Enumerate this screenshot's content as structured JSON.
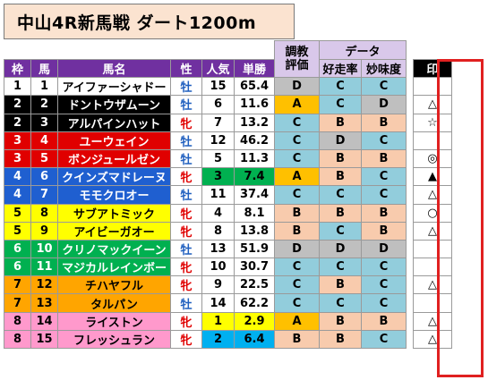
{
  "title": "中山4R新馬戦  ダート1200m",
  "headers": {
    "waku": "枠",
    "uma": "馬",
    "name": "馬名",
    "sex": "性",
    "ninki": "人気",
    "odds": "単勝",
    "chokyo_line1": "調教",
    "chokyo_line2": "評価",
    "data_group": "データ",
    "kosoritsu": "好走率",
    "mimido": "妙味度",
    "mark": "印"
  },
  "colors": {
    "waku": {
      "1": {
        "bg": "#ffffff",
        "fg": "#000000"
      },
      "2": {
        "bg": "#000000",
        "fg": "#ffffff"
      },
      "3": {
        "bg": "#e00000",
        "fg": "#ffffff"
      },
      "4": {
        "bg": "#1f5fd0",
        "fg": "#ffffff"
      },
      "5": {
        "bg": "#ffff00",
        "fg": "#000000"
      },
      "6": {
        "bg": "#00b050",
        "fg": "#ffffff"
      },
      "7": {
        "bg": "#ffa500",
        "fg": "#000000"
      },
      "8": {
        "bg": "#ff99cc",
        "fg": "#000000"
      }
    },
    "grade": {
      "A": "#ffc000",
      "B": "#f8cbad",
      "C": "#92cddc",
      "D": "#bfbfbf"
    },
    "ninki": {
      "1": "#ffff00",
      "2": "#00b0f0",
      "3": "#00b050"
    }
  },
  "rows": [
    {
      "waku": "1",
      "uma": "1",
      "name": "アイファーシャドー",
      "sex": "牡",
      "ninki": "15",
      "odds": "65.4",
      "chokyo": "D",
      "kosoritsu": "C",
      "mimido": "C",
      "mark": ""
    },
    {
      "waku": "2",
      "uma": "2",
      "name": "ドントウザムーン",
      "sex": "牡",
      "ninki": "6",
      "odds": "11.6",
      "chokyo": "A",
      "kosoritsu": "C",
      "mimido": "D",
      "mark": "△"
    },
    {
      "waku": "2",
      "uma": "3",
      "name": "アルパインハット",
      "sex": "牝",
      "ninki": "7",
      "odds": "13.2",
      "chokyo": "C",
      "kosoritsu": "B",
      "mimido": "B",
      "mark": "☆"
    },
    {
      "waku": "3",
      "uma": "4",
      "name": "ユーウェイン",
      "sex": "牡",
      "ninki": "12",
      "odds": "46.2",
      "chokyo": "C",
      "kosoritsu": "D",
      "mimido": "C",
      "mark": ""
    },
    {
      "waku": "3",
      "uma": "5",
      "name": "ボンジュールゼン",
      "sex": "牡",
      "ninki": "5",
      "odds": "11.3",
      "chokyo": "C",
      "kosoritsu": "B",
      "mimido": "B",
      "mark": "◎"
    },
    {
      "waku": "4",
      "uma": "6",
      "name": "クインズマドレーヌ",
      "sex": "牝",
      "ninki": "3",
      "odds": "7.4",
      "chokyo": "A",
      "kosoritsu": "B",
      "mimido": "C",
      "mark": "▲"
    },
    {
      "waku": "4",
      "uma": "7",
      "name": "モモクロオー",
      "sex": "牡",
      "ninki": "11",
      "odds": "37.4",
      "chokyo": "C",
      "kosoritsu": "C",
      "mimido": "C",
      "mark": "△"
    },
    {
      "waku": "5",
      "uma": "8",
      "name": "サブアトミック",
      "sex": "牝",
      "ninki": "4",
      "odds": "8.1",
      "chokyo": "B",
      "kosoritsu": "B",
      "mimido": "B",
      "mark": "○"
    },
    {
      "waku": "5",
      "uma": "9",
      "name": "アイビーガオー",
      "sex": "牝",
      "ninki": "8",
      "odds": "13.8",
      "chokyo": "B",
      "kosoritsu": "C",
      "mimido": "B",
      "mark": "△"
    },
    {
      "waku": "6",
      "uma": "10",
      "name": "クリノマックイーン",
      "sex": "牡",
      "ninki": "13",
      "odds": "51.9",
      "chokyo": "D",
      "kosoritsu": "D",
      "mimido": "D",
      "mark": ""
    },
    {
      "waku": "6",
      "uma": "11",
      "name": "マジカルレインボー",
      "sex": "牝",
      "ninki": "10",
      "odds": "30.7",
      "chokyo": "C",
      "kosoritsu": "C",
      "mimido": "C",
      "mark": ""
    },
    {
      "waku": "7",
      "uma": "12",
      "name": "チハヤフル",
      "sex": "牝",
      "ninki": "9",
      "odds": "22.5",
      "chokyo": "C",
      "kosoritsu": "B",
      "mimido": "C",
      "mark": "△"
    },
    {
      "waku": "7",
      "uma": "13",
      "name": "タルパン",
      "sex": "牡",
      "ninki": "14",
      "odds": "62.2",
      "chokyo": "C",
      "kosoritsu": "C",
      "mimido": "C",
      "mark": ""
    },
    {
      "waku": "8",
      "uma": "14",
      "name": "ライストン",
      "sex": "牝",
      "ninki": "1",
      "odds": "2.9",
      "chokyo": "A",
      "kosoritsu": "B",
      "mimido": "B",
      "mark": "△"
    },
    {
      "waku": "8",
      "uma": "15",
      "name": "フレッシュラン",
      "sex": "牝",
      "ninki": "2",
      "odds": "6.4",
      "chokyo": "B",
      "kosoritsu": "B",
      "mimido": "C",
      "mark": "△"
    }
  ]
}
